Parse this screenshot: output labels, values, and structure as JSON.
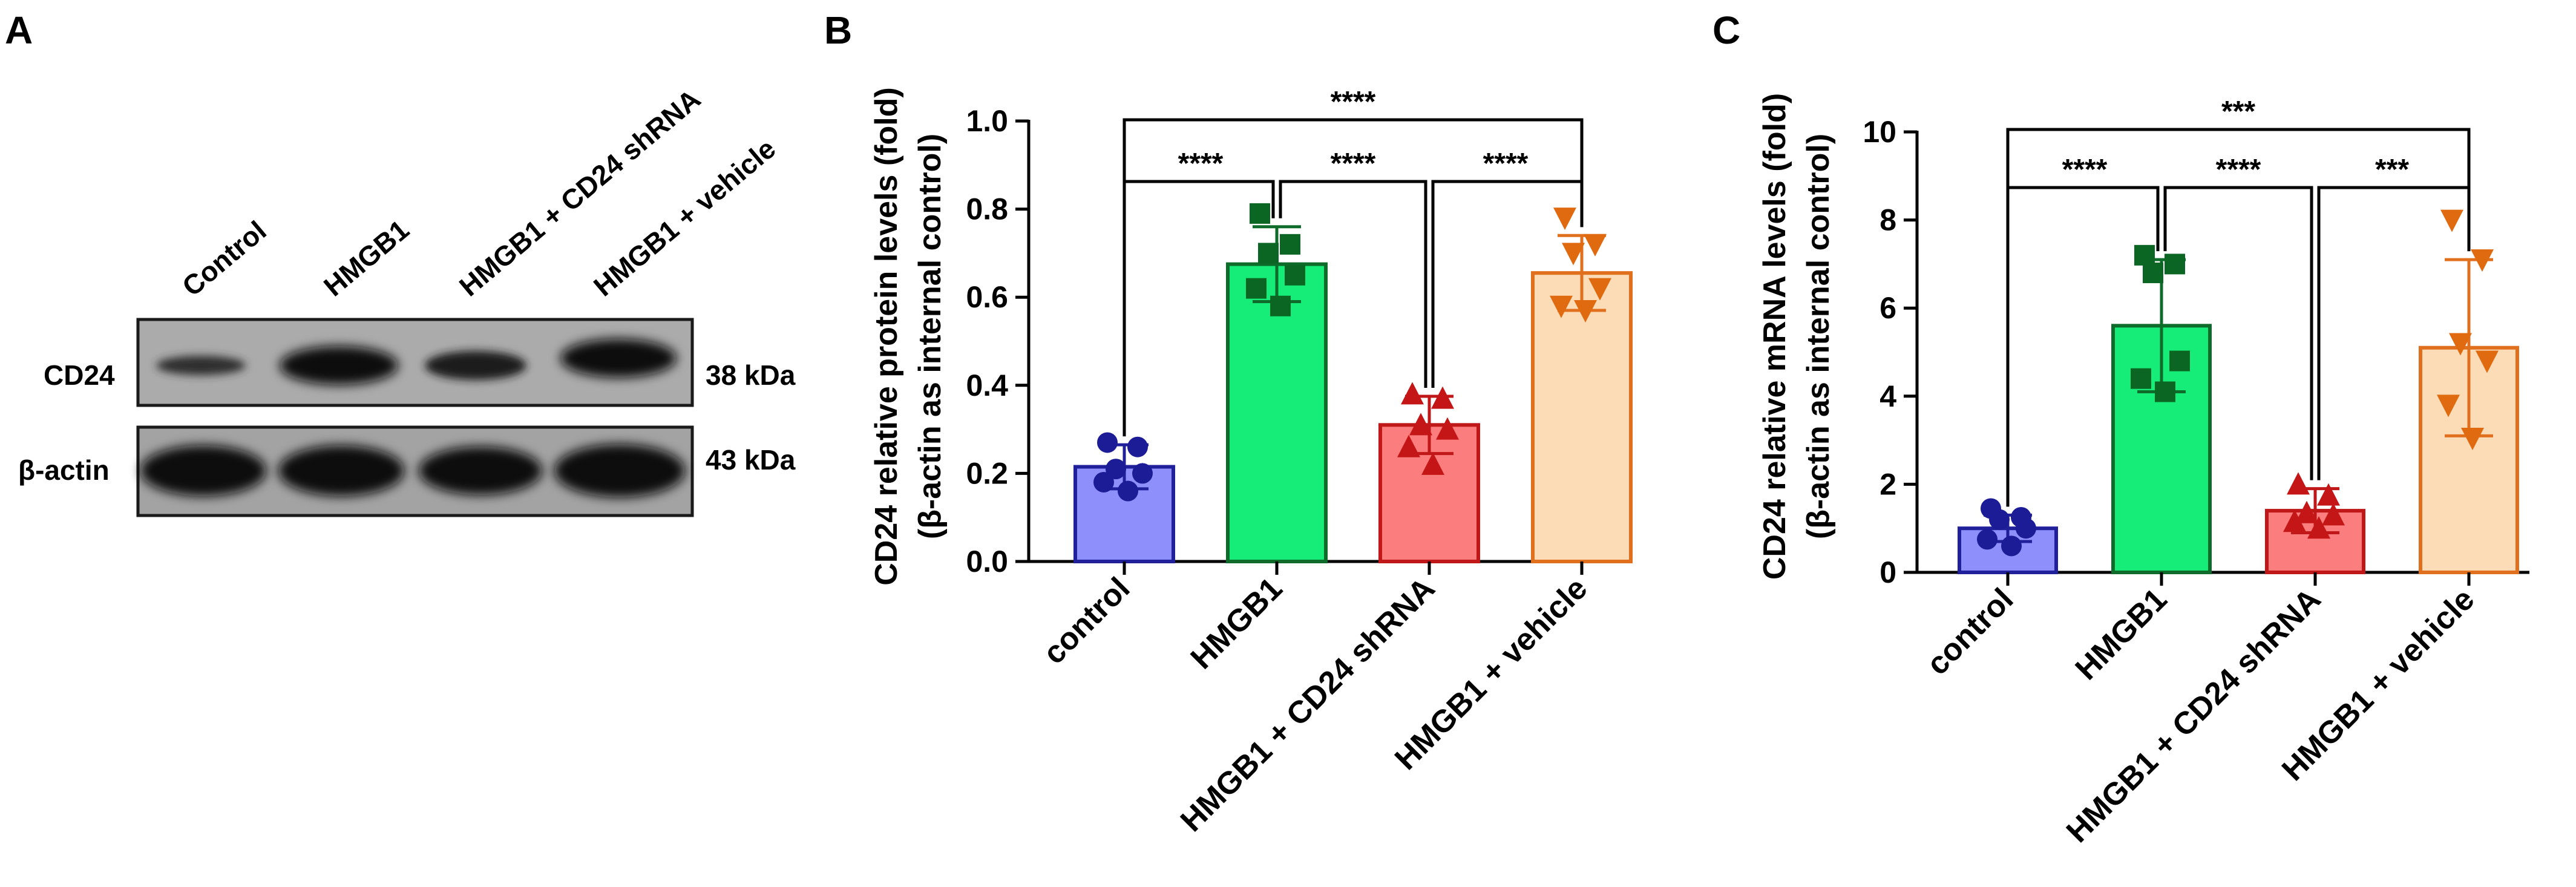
{
  "panels": {
    "a": {
      "letter": "A"
    },
    "b": {
      "letter": "B"
    },
    "c": {
      "letter": "C"
    }
  },
  "western_blot": {
    "lanes": [
      "Control",
      "HMGB1",
      "HMGB1 + CD24 shRNA",
      "HMGB1 + vehicle"
    ],
    "rows": [
      {
        "label": "CD24",
        "size": "38 kDa"
      },
      {
        "label": "β-actin",
        "size": "43 kDa"
      }
    ]
  },
  "colors": {
    "fills": [
      "#8f8ffc",
      "#16ed78",
      "#fb7d7d",
      "#fbdcb7"
    ],
    "edges": [
      "#20209a",
      "#0e6b2a",
      "#c01818",
      "#e0701e"
    ],
    "points": [
      "#1c1c96",
      "#0a6622",
      "#c41616",
      "#e06a10"
    ]
  },
  "chart_data": [
    {
      "type": "bar",
      "panel": "B",
      "categories": [
        "control",
        "HMGB1",
        "HMGB1 + CD24 shRNA",
        "HMGB1 + vehicle"
      ],
      "values": [
        0.215,
        0.675,
        0.31,
        0.655
      ],
      "sd": [
        0.05,
        0.085,
        0.065,
        0.085
      ],
      "points": [
        [
          0.27,
          0.26,
          0.21,
          0.2,
          0.18,
          0.16
        ],
        [
          0.79,
          0.72,
          0.7,
          0.65,
          0.62,
          0.58
        ],
        [
          0.38,
          0.37,
          0.31,
          0.3,
          0.26,
          0.22
        ],
        [
          0.78,
          0.72,
          0.7,
          0.62,
          0.58,
          0.57
        ]
      ],
      "markers": [
        "circle",
        "square",
        "triangle",
        "triangle-down"
      ],
      "ylabel_line1": "CD24 relative protein levels (fold)",
      "ylabel_line2": "(β-actin as internal control)",
      "ylim": [
        0,
        1.0
      ],
      "yticks": [
        "0.0",
        "0.2",
        "0.4",
        "0.6",
        "0.8",
        "1.0"
      ],
      "significance": [
        {
          "from": 0,
          "to": 1,
          "label": "****"
        },
        {
          "from": 1,
          "to": 2,
          "label": "****"
        },
        {
          "from": 2,
          "to": 3,
          "label": "****"
        },
        {
          "from": 0,
          "to": 3,
          "label": "****"
        }
      ]
    },
    {
      "type": "bar",
      "panel": "C",
      "categories": [
        "control",
        "HMGB1",
        "HMGB1 + CD24 shRNA",
        "HMGB1 + vehicle"
      ],
      "values": [
        1.0,
        5.6,
        1.4,
        5.1
      ],
      "sd": [
        0.3,
        1.5,
        0.5,
        2.0
      ],
      "points": [
        [
          1.45,
          1.25,
          1.2,
          1.0,
          0.75,
          0.6
        ],
        [
          7.2,
          7.0,
          6.8,
          4.8,
          4.4,
          4.1
        ],
        [
          2.0,
          1.75,
          1.35,
          1.3,
          1.15,
          1.0
        ],
        [
          8.0,
          7.1,
          5.2,
          4.8,
          3.8,
          3.05
        ]
      ],
      "markers": [
        "circle",
        "square",
        "triangle",
        "triangle-down"
      ],
      "ylabel_line1": "CD24 relative mRNA levels (fold)",
      "ylabel_line2": "(β-actin as internal control)",
      "ylim": [
        0,
        10
      ],
      "yticks": [
        "0",
        "2",
        "4",
        "6",
        "8",
        "10"
      ],
      "significance": [
        {
          "from": 0,
          "to": 1,
          "label": "****"
        },
        {
          "from": 1,
          "to": 2,
          "label": "****"
        },
        {
          "from": 2,
          "to": 3,
          "label": "***"
        },
        {
          "from": 0,
          "to": 3,
          "label": "***"
        }
      ]
    }
  ]
}
